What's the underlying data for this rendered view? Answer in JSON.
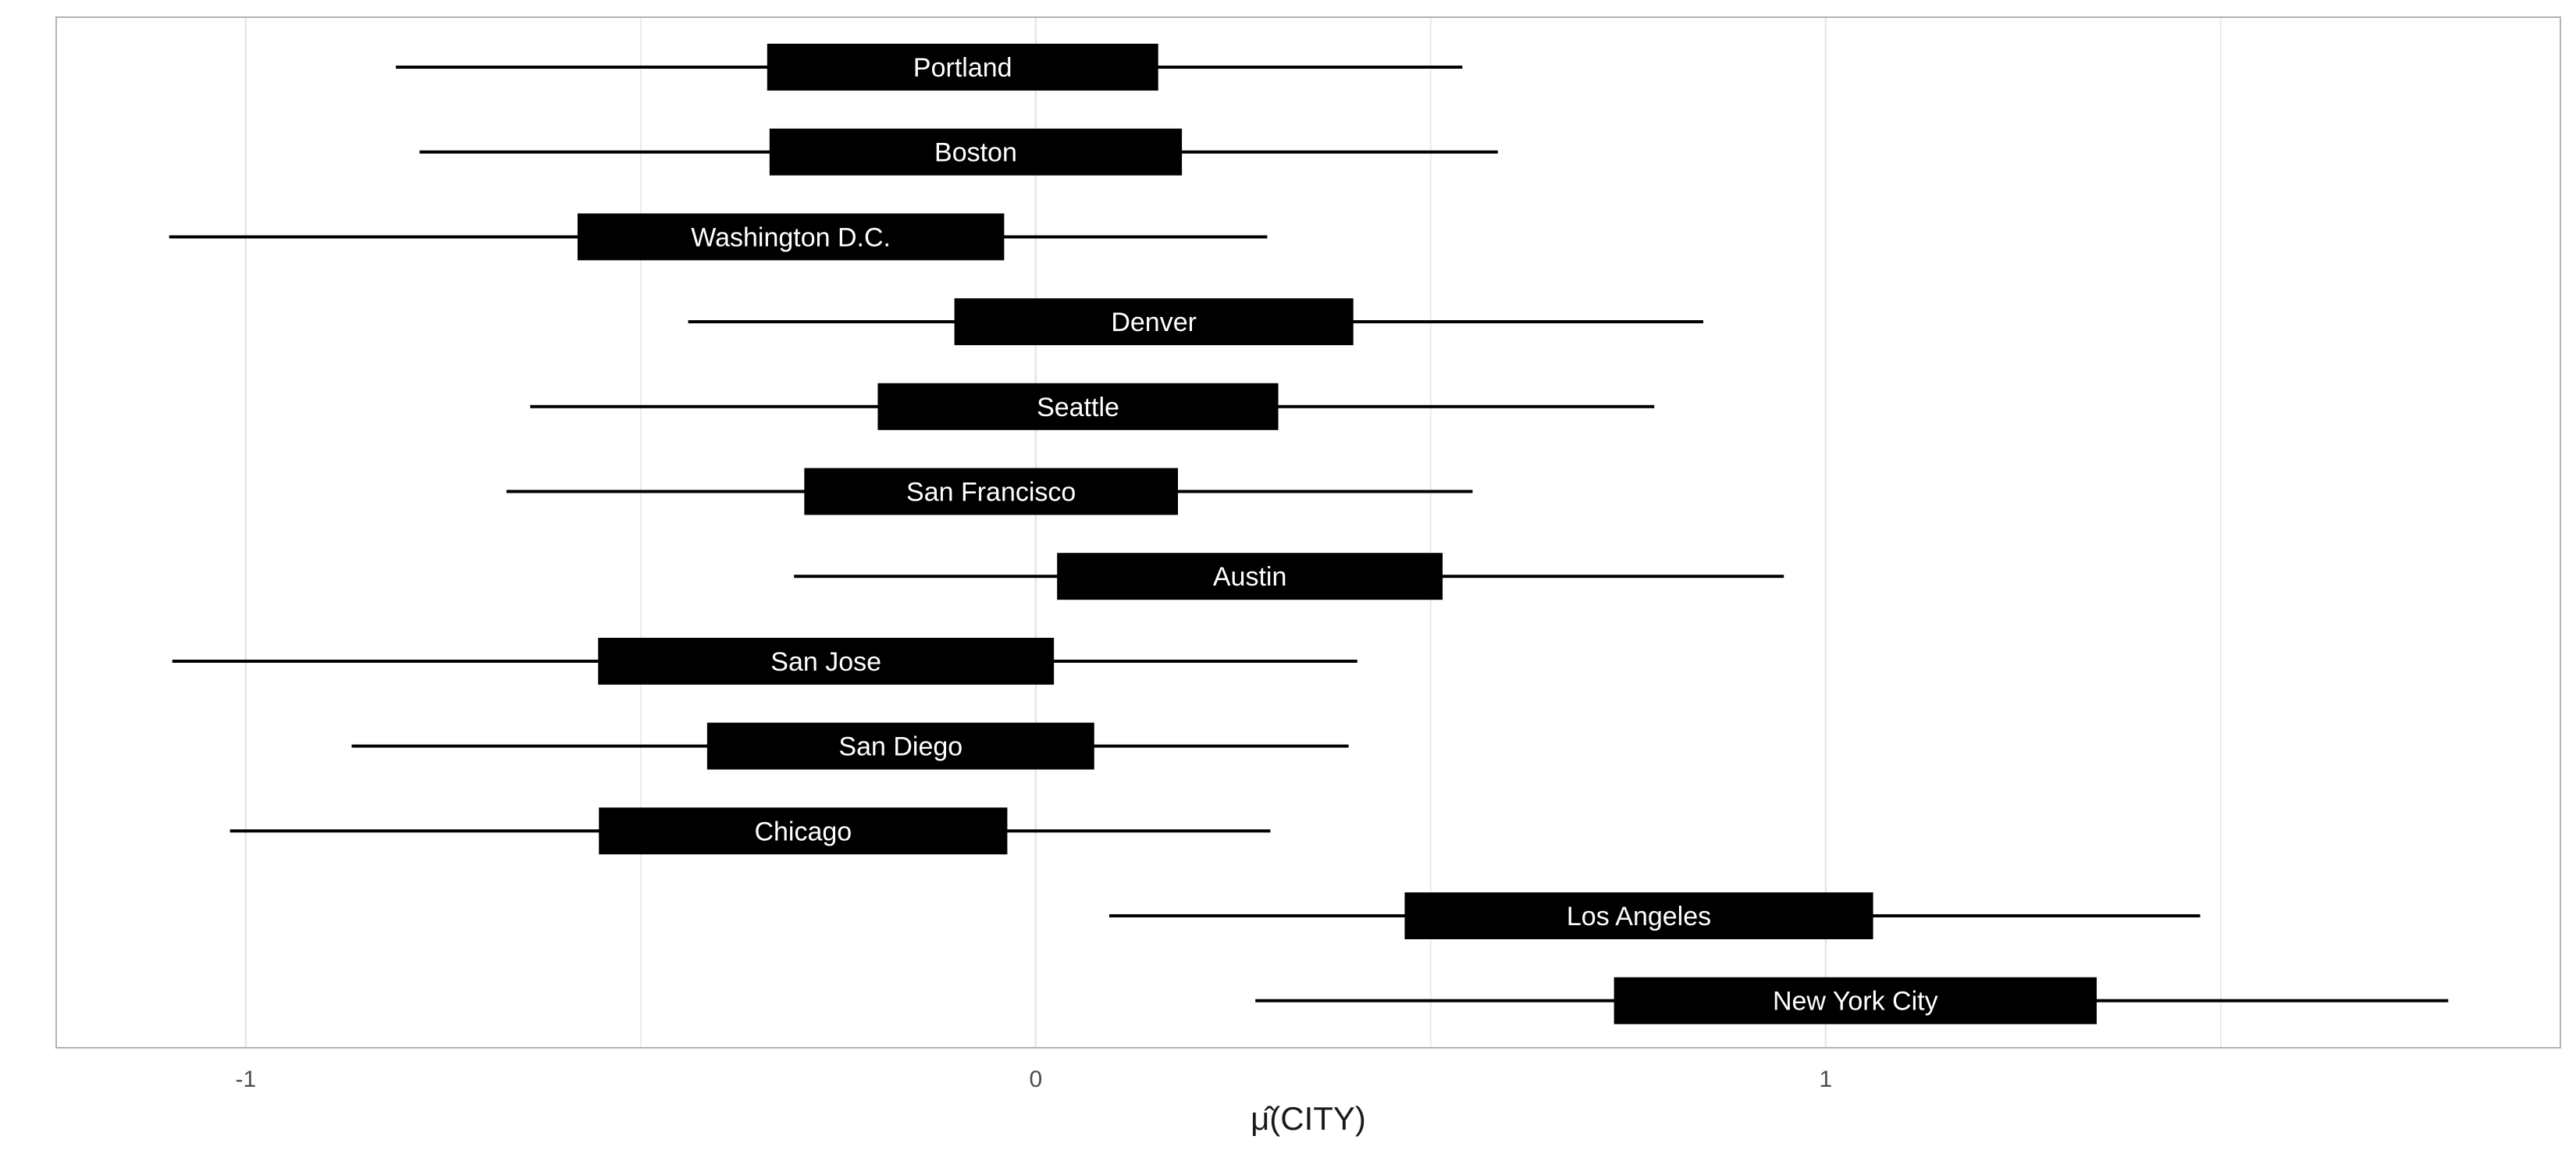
{
  "chart_data": {
    "type": "interval",
    "xlabel": "μ̂(CITY)",
    "xlim": [
      -1.24,
      1.93
    ],
    "x_ticks": [
      -1,
      0,
      1
    ],
    "x_tick_labels": [
      "-1",
      "0",
      "1"
    ],
    "grid": true,
    "legend": "none",
    "series": [
      {
        "label": "Portland",
        "lower": -0.81,
        "q25": -0.34,
        "q75": 0.155,
        "upper": 0.54
      },
      {
        "label": "Boston",
        "lower": -0.78,
        "q25": -0.337,
        "q75": 0.185,
        "upper": 0.585
      },
      {
        "label": "Washington D.C.",
        "lower": -1.097,
        "q25": -0.58,
        "q75": -0.04,
        "upper": 0.293
      },
      {
        "label": "Denver",
        "lower": -0.44,
        "q25": -0.103,
        "q75": 0.402,
        "upper": 0.845
      },
      {
        "label": "Seattle",
        "lower": -0.64,
        "q25": -0.2,
        "q75": 0.307,
        "upper": 0.783
      },
      {
        "label": "San Francisco",
        "lower": -0.67,
        "q25": -0.293,
        "q75": 0.18,
        "upper": 0.553
      },
      {
        "label": "Austin",
        "lower": -0.306,
        "q25": 0.027,
        "q75": 0.515,
        "upper": 0.947
      },
      {
        "label": "San Jose",
        "lower": -1.093,
        "q25": -0.554,
        "q75": 0.023,
        "upper": 0.407
      },
      {
        "label": "San Diego",
        "lower": -0.866,
        "q25": -0.416,
        "q75": 0.074,
        "upper": 0.396
      },
      {
        "label": "Chicago",
        "lower": -1.02,
        "q25": -0.553,
        "q75": -0.036,
        "upper": 0.297
      },
      {
        "label": "Los Angeles",
        "lower": 0.093,
        "q25": 0.467,
        "q75": 1.06,
        "upper": 1.474
      },
      {
        "label": "New York City",
        "lower": 0.278,
        "q25": 0.732,
        "q75": 1.343,
        "upper": 1.788
      }
    ]
  },
  "colors": {
    "box": "#000000",
    "whisker": "#000000",
    "label": "#ffffff",
    "grid": "#e6e6e6",
    "panel_border": "#b3b3b3",
    "axis_text": "#4d4d4d",
    "axis_title": "#1a1a1a"
  }
}
